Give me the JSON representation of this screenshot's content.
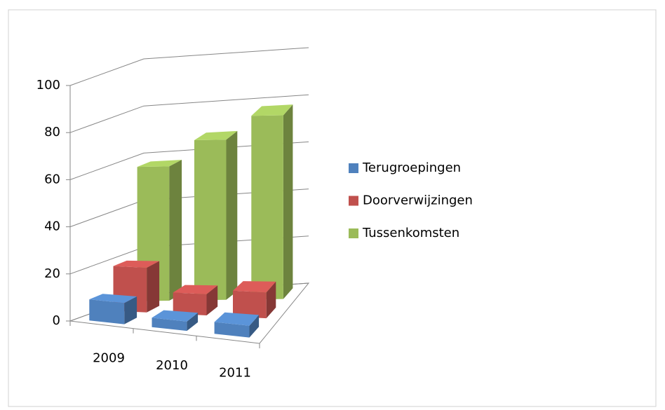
{
  "chart_data": {
    "type": "bar3d",
    "categories": [
      "2009",
      "2010",
      "2011"
    ],
    "series": [
      {
        "name": "Terugroepingen",
        "color": "#4f81bd",
        "values": [
          9,
          4,
          5
        ]
      },
      {
        "name": "Doorverwijzingen",
        "color": "#c0504d",
        "values": [
          19,
          9,
          11
        ]
      },
      {
        "name": "Tussenkomsten",
        "color": "#9bbb59",
        "values": [
          57,
          68,
          78
        ]
      }
    ],
    "ylim": [
      0,
      100
    ],
    "yticks": [
      0,
      20,
      40,
      60,
      80,
      100
    ],
    "grid": true,
    "legend": "right"
  }
}
